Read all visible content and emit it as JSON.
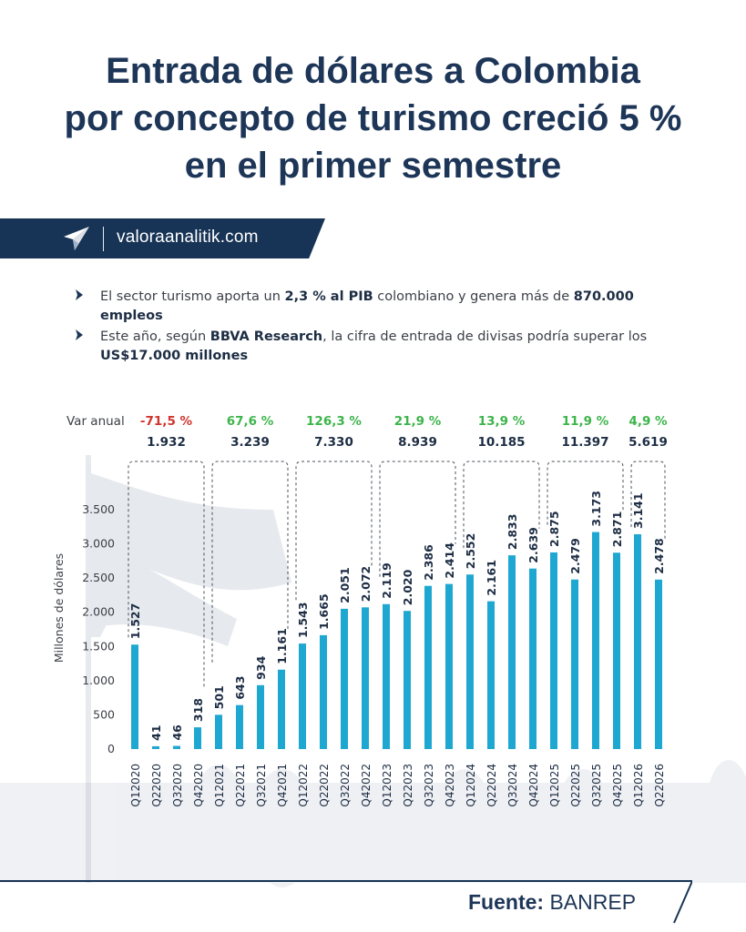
{
  "title_lines": [
    "Entrada de dólares a Colombia",
    "por concepto de turismo creció 5 %",
    "en el primer semestre"
  ],
  "banner": {
    "site": "valoraanalitik.com",
    "logo_icon": "paper-plane-icon"
  },
  "bullets": [
    {
      "parts": [
        {
          "text": "El sector turismo aporta un ",
          "bold": false
        },
        {
          "text": "2,3 % al PIB",
          "bold": true
        },
        {
          "text": " colombiano y genera más de ",
          "bold": false
        },
        {
          "text": "870.000 empleos",
          "bold": true
        }
      ]
    },
    {
      "parts": [
        {
          "text": "Este año, según ",
          "bold": false
        },
        {
          "text": "BBVA Research",
          "bold": true
        },
        {
          "text": ", la cifra de entrada de divisas podría superar los ",
          "bold": false
        },
        {
          "text": "US$17.000 millones",
          "bold": true
        }
      ]
    }
  ],
  "footer": {
    "label": "Fuente:",
    "source": "BANREP"
  },
  "colors": {
    "bar": "#1ea7d1",
    "navy": "#173456",
    "negative": "#d0342c",
    "positive": "#3cb54a"
  },
  "chart_data": {
    "type": "bar",
    "ylabel": "Millones de dólares",
    "ylim": [
      0,
      3500
    ],
    "yticks": [
      0,
      500,
      1000,
      1500,
      2000,
      2500,
      3000,
      3500
    ],
    "ytick_labels": [
      "0",
      "500",
      "1.000",
      "1.500",
      "2.000",
      "2.500",
      "3.000",
      "3.500"
    ],
    "categories": [
      "Q1 2020",
      "Q2 2020",
      "Q3 2020",
      "Q4 2020",
      "Q1 2021",
      "Q2 2021",
      "Q3 2021",
      "Q4 2021",
      "Q1 2022",
      "Q2 2022",
      "Q3 2022",
      "Q4 2022",
      "Q1 2023",
      "Q2 2023",
      "Q3 2023",
      "Q4 2023",
      "Q1 2024",
      "Q2 2024",
      "Q3 2024",
      "Q4 2024",
      "Q1 2025",
      "Q2 2025",
      "Q3 2025",
      "Q4 2025",
      "Q1 2026",
      "Q2 2026"
    ],
    "values": [
      1527,
      41,
      46,
      318,
      501,
      643,
      934,
      1161,
      1543,
      1665,
      2051,
      2072,
      2119,
      2020,
      2386,
      2414,
      2552,
      2161,
      2833,
      2639,
      2875,
      2479,
      3173,
      2871,
      3141,
      2478
    ],
    "value_labels": [
      "1.527",
      "41",
      "46",
      "318",
      "501",
      "643",
      "934",
      "1.161",
      "1.543",
      "1.665",
      "2.051",
      "2.072",
      "2.119",
      "2.020",
      "2.386",
      "2.414",
      "2.552",
      "2.161",
      "2.833",
      "2.639",
      "2.875",
      "2.479",
      "3.173",
      "2.871",
      "3.141",
      "2.478"
    ],
    "annual_header": "Var anual",
    "annual": [
      {
        "year": "2020",
        "start": 0,
        "end": 3,
        "var": "-71,5 %",
        "negative": true,
        "total": "1.932"
      },
      {
        "year": "2021",
        "start": 4,
        "end": 7,
        "var": "67,6 %",
        "negative": false,
        "total": "3.239"
      },
      {
        "year": "2022",
        "start": 8,
        "end": 11,
        "var": "126,3 %",
        "negative": false,
        "total": "7.330"
      },
      {
        "year": "2023",
        "start": 12,
        "end": 15,
        "var": "21,9 %",
        "negative": false,
        "total": "8.939"
      },
      {
        "year": "2024",
        "start": 16,
        "end": 19,
        "var": "13,9 %",
        "negative": false,
        "total": "10.185"
      },
      {
        "year": "2025",
        "start": 20,
        "end": 23,
        "var": "11,9 %",
        "negative": false,
        "total": "11.397"
      },
      {
        "year": "2026",
        "start": 24,
        "end": 25,
        "var": "4,9 %",
        "negative": false,
        "total": "5.619"
      }
    ]
  }
}
